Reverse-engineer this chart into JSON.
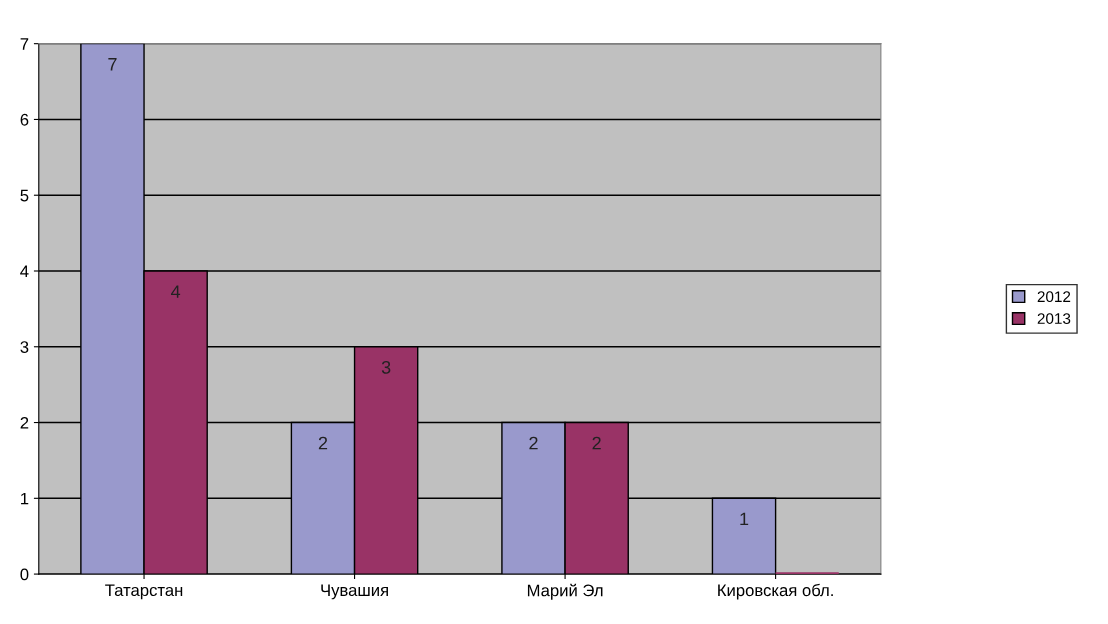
{
  "chart_data": {
    "type": "bar",
    "categories": [
      "Татарстан",
      "Чувашия",
      "Марий Эл",
      "Кировская обл."
    ],
    "series": [
      {
        "name": "2012",
        "color": "#9999cc",
        "values": [
          7,
          2,
          2,
          1
        ],
        "value_labels": [
          "7",
          "2",
          "2",
          "1"
        ]
      },
      {
        "name": "2013",
        "color": "#993366",
        "values": [
          4,
          3,
          2,
          0
        ],
        "value_labels": [
          "4",
          "3",
          "2",
          null
        ]
      }
    ],
    "ylim": [
      0,
      7
    ],
    "yticks": [
      0,
      1,
      2,
      3,
      4,
      5,
      6,
      7
    ],
    "grid": "y",
    "legend": "right"
  }
}
